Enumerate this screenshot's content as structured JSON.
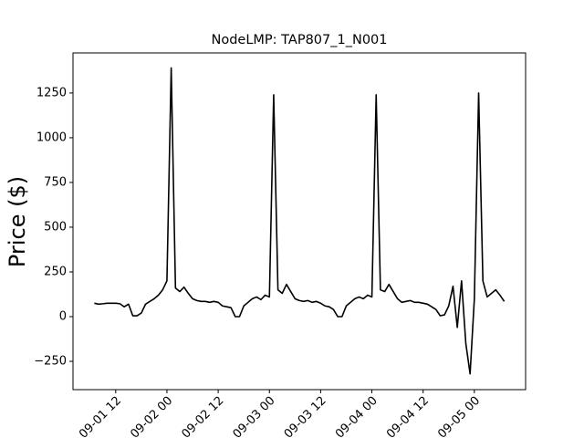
{
  "chart_data": {
    "type": "line",
    "title": "NodeLMP: TAP807_1_N001",
    "y_label": "Price ($)",
    "x": [
      "09-01 07",
      "09-01 08",
      "09-01 09",
      "09-01 10",
      "09-01 11",
      "09-01 12",
      "09-01 13",
      "09-01 14",
      "09-01 15",
      "09-01 16",
      "09-01 17",
      "09-01 18",
      "09-01 19",
      "09-01 20",
      "09-01 21",
      "09-01 22",
      "09-01 23",
      "09-02 00",
      "09-02 01",
      "09-02 02",
      "09-02 03",
      "09-02 04",
      "09-02 05",
      "09-02 06",
      "09-02 07",
      "09-02 08",
      "09-02 09",
      "09-02 10",
      "09-02 11",
      "09-02 12",
      "09-02 13",
      "09-02 14",
      "09-02 15",
      "09-02 16",
      "09-02 17",
      "09-02 18",
      "09-02 19",
      "09-02 20",
      "09-02 21",
      "09-02 22",
      "09-02 23",
      "09-03 00",
      "09-03 01",
      "09-03 02",
      "09-03 03",
      "09-03 04",
      "09-03 05",
      "09-03 06",
      "09-03 07",
      "09-03 08",
      "09-03 09",
      "09-03 10",
      "09-03 11",
      "09-03 12",
      "09-03 13",
      "09-03 14",
      "09-03 15",
      "09-03 16",
      "09-03 17",
      "09-03 18",
      "09-03 19",
      "09-03 20",
      "09-03 21",
      "09-03 22",
      "09-03 23",
      "09-04 00",
      "09-04 01",
      "09-04 02",
      "09-04 03",
      "09-04 04",
      "09-04 05",
      "09-04 06",
      "09-04 07",
      "09-04 08",
      "09-04 09",
      "09-04 10",
      "09-04 11",
      "09-04 12",
      "09-04 13",
      "09-04 14",
      "09-04 15",
      "09-04 16",
      "09-04 17",
      "09-04 18",
      "09-04 19",
      "09-04 20",
      "09-04 21",
      "09-04 22",
      "09-04 23",
      "09-05 00",
      "09-05 01",
      "09-05 02",
      "09-05 03",
      "09-05 04",
      "09-05 05",
      "09-05 06",
      "09-05 07"
    ],
    "series": [
      {
        "name": "NodeLMP",
        "color": "#000000",
        "values": [
          75,
          70,
          72,
          75,
          75,
          75,
          72,
          55,
          70,
          5,
          5,
          20,
          70,
          85,
          100,
          120,
          150,
          200,
          1390,
          160,
          140,
          165,
          130,
          100,
          90,
          85,
          85,
          80,
          85,
          80,
          60,
          55,
          50,
          0,
          0,
          60,
          80,
          100,
          110,
          95,
          120,
          110,
          1240,
          150,
          130,
          180,
          140,
          100,
          90,
          85,
          90,
          80,
          85,
          75,
          60,
          55,
          40,
          0,
          0,
          60,
          80,
          100,
          110,
          100,
          120,
          110,
          1240,
          150,
          140,
          180,
          140,
          100,
          80,
          85,
          90,
          80,
          80,
          75,
          70,
          55,
          40,
          5,
          10,
          60,
          170,
          -60,
          200,
          -150,
          -320,
          100,
          1250,
          200,
          110,
          130,
          150,
          120,
          85
        ]
      }
    ],
    "xlim": [
      "09-01 02",
      "09-05 12"
    ],
    "xticks": [
      "09-01 12",
      "09-02 00",
      "09-02 12",
      "09-03 00",
      "09-03 12",
      "09-04 00",
      "09-04 12",
      "09-05 00"
    ],
    "ylim": [
      -408,
      1474
    ],
    "yticks": [
      {
        "value": -250,
        "label": "−250"
      },
      0,
      250,
      500,
      750,
      1000,
      1250
    ]
  }
}
